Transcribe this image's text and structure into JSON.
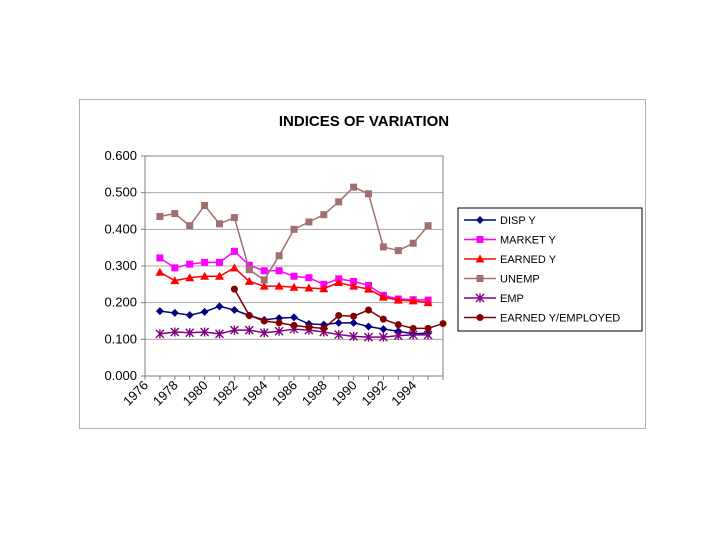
{
  "chart_data": {
    "type": "line",
    "title": "INDICES OF VARIATION",
    "xlabel": "",
    "ylabel": "",
    "ylim": [
      0,
      0.6
    ],
    "yticks": [
      "0.000",
      "0.100",
      "0.200",
      "0.300",
      "0.400",
      "0.500",
      "0.600"
    ],
    "xtick_labels": [
      "1976",
      "1978",
      "1980",
      "1982",
      "1984",
      "1986",
      "1988",
      "1990",
      "1992",
      "1994"
    ],
    "x_range": [
      1976,
      1996
    ],
    "grid": "horizontal",
    "legend_position": "right",
    "series": [
      {
        "name": "DISP Y",
        "color": "#000080",
        "marker": "diamond",
        "x": [
          1977,
          1978,
          1979,
          1980,
          1981,
          1982,
          1983,
          1984,
          1985,
          1986,
          1987,
          1988,
          1989,
          1990,
          1991,
          1992,
          1993,
          1994,
          1995
        ],
        "values": [
          0.177,
          0.172,
          0.166,
          0.175,
          0.19,
          0.18,
          0.165,
          0.153,
          0.158,
          0.16,
          0.142,
          0.14,
          0.145,
          0.145,
          0.135,
          0.128,
          0.122,
          0.115,
          0.117
        ]
      },
      {
        "name": "MARKET Y",
        "color": "#ff00ff",
        "marker": "square",
        "x": [
          1977,
          1978,
          1979,
          1980,
          1981,
          1982,
          1983,
          1984,
          1985,
          1986,
          1987,
          1988,
          1989,
          1990,
          1991,
          1992,
          1993,
          1994,
          1995
        ],
        "values": [
          0.322,
          0.295,
          0.305,
          0.31,
          0.31,
          0.34,
          0.302,
          0.287,
          0.287,
          0.272,
          0.268,
          0.25,
          0.265,
          0.258,
          0.247,
          0.22,
          0.21,
          0.208,
          0.207
        ]
      },
      {
        "name": "EARNED Y",
        "color": "#ff0000",
        "marker": "triangle",
        "x": [
          1977,
          1978,
          1979,
          1980,
          1981,
          1982,
          1983,
          1984,
          1985,
          1986,
          1987,
          1988,
          1989,
          1990,
          1991,
          1992,
          1993,
          1994,
          1995
        ],
        "values": [
          0.283,
          0.26,
          0.268,
          0.272,
          0.272,
          0.295,
          0.258,
          0.245,
          0.245,
          0.242,
          0.24,
          0.238,
          0.255,
          0.245,
          0.237,
          0.215,
          0.207,
          0.205,
          0.2
        ]
      },
      {
        "name": "UNEMP",
        "color": "#a07070",
        "marker": "square",
        "x": [
          1977,
          1978,
          1979,
          1980,
          1981,
          1982,
          1983,
          1984,
          1985,
          1986,
          1987,
          1988,
          1989,
          1990,
          1991,
          1992,
          1993,
          1994,
          1995
        ],
        "values": [
          0.435,
          0.443,
          0.41,
          0.465,
          0.415,
          0.432,
          0.29,
          0.262,
          0.328,
          0.4,
          0.42,
          0.44,
          0.475,
          0.515,
          0.497,
          0.352,
          0.342,
          0.362,
          0.41
        ]
      },
      {
        "name": "EMP",
        "color": "#800080",
        "marker": "star",
        "x": [
          1977,
          1978,
          1979,
          1980,
          1981,
          1982,
          1983,
          1984,
          1985,
          1986,
          1987,
          1988,
          1989,
          1990,
          1991,
          1992,
          1993,
          1994,
          1995
        ],
        "values": [
          0.115,
          0.12,
          0.118,
          0.12,
          0.115,
          0.125,
          0.125,
          0.118,
          0.122,
          0.128,
          0.125,
          0.12,
          0.113,
          0.108,
          0.106,
          0.106,
          0.11,
          0.112,
          0.112
        ]
      },
      {
        "name": "EARNED Y/EMPLOYED",
        "color": "#800000",
        "marker": "circle",
        "x": [
          1982,
          1983,
          1984,
          1985,
          1986,
          1987,
          1988,
          1989,
          1990,
          1991,
          1992,
          1993,
          1994,
          1995,
          1996
        ],
        "values": [
          0.237,
          0.165,
          0.15,
          0.145,
          0.138,
          0.133,
          0.13,
          0.165,
          0.163,
          0.18,
          0.155,
          0.14,
          0.13,
          0.13,
          0.143
        ]
      }
    ]
  }
}
